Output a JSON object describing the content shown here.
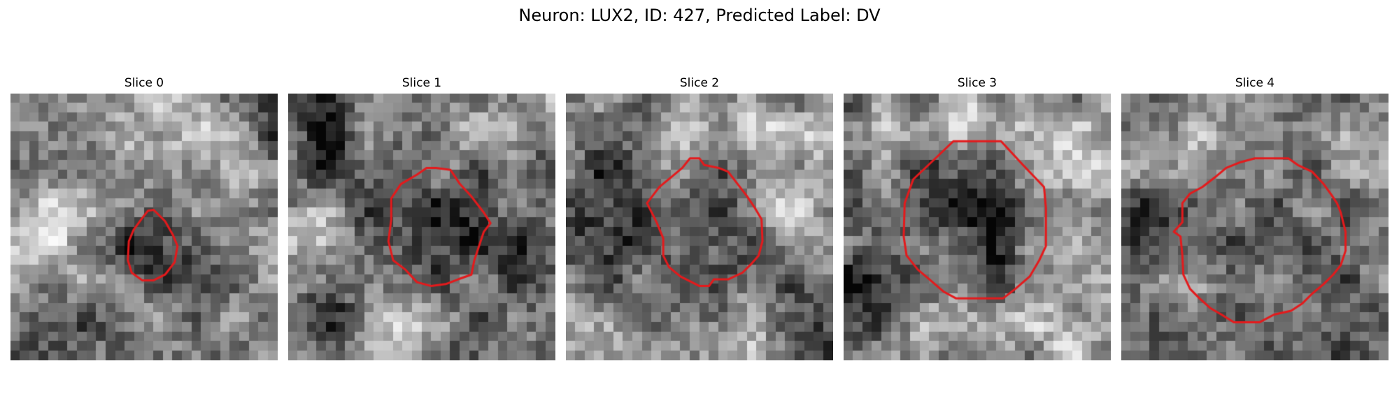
{
  "figure": {
    "title": "Neuron: LUX2, ID: 427, Predicted Label: DV",
    "contour_color": "#e41a1c",
    "image_colormap": "gray",
    "slices": [
      {
        "title": "Slice 0",
        "seed": 11,
        "contour": [
          [
            15,
            12.2
          ],
          [
            16.2,
            13.4
          ],
          [
            17,
            14.8
          ],
          [
            17.5,
            16
          ],
          [
            17.2,
            17.7
          ],
          [
            16.2,
            19
          ],
          [
            15,
            19.6
          ],
          [
            13.8,
            19.6
          ],
          [
            12.7,
            18.8
          ],
          [
            12.3,
            17.5
          ],
          [
            12.4,
            15.5
          ],
          [
            12.9,
            14.3
          ],
          [
            13.7,
            13.2
          ],
          [
            14.4,
            12.3
          ]
        ],
        "pattern": [
          {
            "x": 15,
            "y": 16.5,
            "rx": 3.8,
            "ry": 4.2,
            "v": -0.34
          },
          {
            "x": 20,
            "y": 4.5,
            "rx": 7,
            "ry": 6,
            "v": 0.2
          },
          {
            "x": 3,
            "y": 14,
            "rx": 5,
            "ry": 6,
            "v": 0.22
          },
          {
            "x": 6,
            "y": 27,
            "rx": 7,
            "ry": 4,
            "v": -0.25
          },
          {
            "x": 27.5,
            "y": 2,
            "rx": 2,
            "ry": 5,
            "v": -0.3
          },
          {
            "x": 24,
            "y": 25,
            "rx": 6,
            "ry": 5,
            "v": 0.12
          },
          {
            "x": 26,
            "y": 12,
            "rx": 5,
            "ry": 4,
            "v": 0.15
          }
        ]
      },
      {
        "title": "Slice 1",
        "seed": 23,
        "contour": [
          [
            15.5,
            7.8
          ],
          [
            17,
            8
          ],
          [
            18,
            9.5
          ],
          [
            19.2,
            10.8
          ],
          [
            20.5,
            12.5
          ],
          [
            21.2,
            13.6
          ],
          [
            20.5,
            14.5
          ],
          [
            20,
            16
          ],
          [
            19.5,
            17.5
          ],
          [
            19.2,
            19
          ],
          [
            17.8,
            19.5
          ],
          [
            16.5,
            20
          ],
          [
            15,
            20.2
          ],
          [
            13.5,
            19.8
          ],
          [
            12.3,
            18.5
          ],
          [
            11,
            17.5
          ],
          [
            10.5,
            15.5
          ],
          [
            10.8,
            13.2
          ],
          [
            10.8,
            11
          ],
          [
            11.8,
            9.5
          ],
          [
            13.5,
            8.5
          ],
          [
            14.5,
            7.8
          ]
        ],
        "pattern": [
          {
            "x": 15,
            "y": 14,
            "rx": 6.5,
            "ry": 6,
            "v": -0.38
          },
          {
            "x": 3,
            "y": 5,
            "rx": 4,
            "ry": 6,
            "v": -0.3
          },
          {
            "x": 2,
            "y": 13,
            "rx": 3,
            "ry": 3,
            "v": 0.3
          },
          {
            "x": 11,
            "y": 27,
            "rx": 5,
            "ry": 4,
            "v": 0.32
          },
          {
            "x": 4,
            "y": 22,
            "rx": 5,
            "ry": 5,
            "v": -0.28
          },
          {
            "x": 25,
            "y": 14,
            "rx": 4,
            "ry": 8,
            "v": -0.22
          },
          {
            "x": 16,
            "y": 3,
            "rx": 8,
            "ry": 3,
            "v": 0.15
          }
        ]
      },
      {
        "title": "Slice 2",
        "seed": 37,
        "contour": [
          [
            13,
            6.8
          ],
          [
            14,
            6.8
          ],
          [
            14.5,
            7.5
          ],
          [
            16,
            7.8
          ],
          [
            17,
            8.2
          ],
          [
            18,
            9.5
          ],
          [
            19,
            10.8
          ],
          [
            19.8,
            12
          ],
          [
            20.5,
            13.2
          ],
          [
            20.6,
            15.5
          ],
          [
            20.2,
            17
          ],
          [
            19.5,
            17.8
          ],
          [
            18.5,
            18.8
          ],
          [
            17,
            19.5
          ],
          [
            15.5,
            19.5
          ],
          [
            15,
            20.2
          ],
          [
            14,
            20.2
          ],
          [
            13.2,
            19.8
          ],
          [
            12,
            19.2
          ],
          [
            10.8,
            18.2
          ],
          [
            10.2,
            17
          ],
          [
            10.2,
            15.2
          ],
          [
            9.5,
            13.5
          ],
          [
            8.5,
            11.5
          ],
          [
            9.8,
            9.8
          ],
          [
            11,
            8.8
          ],
          [
            12.2,
            7.8
          ]
        ],
        "pattern": [
          {
            "x": 14.5,
            "y": 14.5,
            "rx": 5.5,
            "ry": 5,
            "v": -0.32
          },
          {
            "x": 4,
            "y": 12,
            "rx": 4,
            "ry": 10,
            "v": -0.3
          },
          {
            "x": 17,
            "y": 3,
            "rx": 6,
            "ry": 4,
            "v": 0.22
          },
          {
            "x": 24,
            "y": 12,
            "rx": 4,
            "ry": 7,
            "v": 0.22
          },
          {
            "x": 12,
            "y": 26,
            "rx": 8,
            "ry": 3,
            "v": 0.15
          },
          {
            "x": 25,
            "y": 25,
            "rx": 4,
            "ry": 4,
            "v": -0.25
          }
        ]
      },
      {
        "title": "Slice 3",
        "seed": 53,
        "contour": [
          [
            11.5,
            5
          ],
          [
            16.5,
            5
          ],
          [
            18.8,
            7.5
          ],
          [
            21,
            9.8
          ],
          [
            21.2,
            12
          ],
          [
            21.2,
            16
          ],
          [
            20.5,
            17.5
          ],
          [
            19.5,
            19.2
          ],
          [
            18,
            20.5
          ],
          [
            16.7,
            21.5
          ],
          [
            11.8,
            21.5
          ],
          [
            10.5,
            20.8
          ],
          [
            9,
            19.5
          ],
          [
            7.8,
            18.5
          ],
          [
            6.6,
            17
          ],
          [
            6.3,
            15
          ],
          [
            6.4,
            11.5
          ],
          [
            7.3,
            9
          ],
          [
            9.2,
            7.2
          ]
        ],
        "pattern": [
          {
            "x": 14,
            "y": 13.5,
            "rx": 8,
            "ry": 8.5,
            "v": -0.26
          },
          {
            "x": 14,
            "y": 2,
            "rx": 8,
            "ry": 3,
            "v": 0.22
          },
          {
            "x": 25,
            "y": 10,
            "rx": 4,
            "ry": 8,
            "v": 0.2
          },
          {
            "x": 1,
            "y": 22,
            "rx": 2.5,
            "ry": 7,
            "v": -0.3
          },
          {
            "x": 22,
            "y": 25,
            "rx": 5,
            "ry": 4,
            "v": 0.22
          },
          {
            "x": 11,
            "y": 27,
            "rx": 5,
            "ry": 3,
            "v": 0.12
          }
        ]
      },
      {
        "title": "Slice 4",
        "seed": 71,
        "contour": [
          [
            14,
            6.8
          ],
          [
            17.5,
            6.8
          ],
          [
            18.5,
            7.5
          ],
          [
            20,
            8.2
          ],
          [
            21.2,
            9.5
          ],
          [
            22,
            10.6
          ],
          [
            22.6,
            11.5
          ],
          [
            23,
            12.5
          ],
          [
            23.5,
            14.5
          ],
          [
            23.5,
            16.5
          ],
          [
            23,
            18
          ],
          [
            22.2,
            19
          ],
          [
            21.2,
            20
          ],
          [
            20,
            21
          ],
          [
            19,
            22
          ],
          [
            17.8,
            22.8
          ],
          [
            16,
            23.2
          ],
          [
            14.5,
            24
          ],
          [
            11.8,
            24
          ],
          [
            10.5,
            23.2
          ],
          [
            9.3,
            22.5
          ],
          [
            8.2,
            21.5
          ],
          [
            7.2,
            20.5
          ],
          [
            6.5,
            19
          ],
          [
            6.4,
            17
          ],
          [
            6.2,
            15
          ],
          [
            5.5,
            14.5
          ],
          [
            6.4,
            13.5
          ],
          [
            6.4,
            11.5
          ],
          [
            7.2,
            10.5
          ],
          [
            8.5,
            9.8
          ],
          [
            9.8,
            8.8
          ],
          [
            11,
            7.8
          ],
          [
            12.5,
            7.2
          ]
        ],
        "pattern": [
          {
            "x": 15,
            "y": 15.5,
            "rx": 8,
            "ry": 8.5,
            "v": -0.1
          },
          {
            "x": 3,
            "y": 14,
            "rx": 3,
            "ry": 8,
            "v": -0.12
          },
          {
            "x": 24,
            "y": 25,
            "rx": 5,
            "ry": 4,
            "v": -0.18
          },
          {
            "x": 5,
            "y": 7,
            "rx": 4,
            "ry": 4,
            "v": 0.12
          },
          {
            "x": 25,
            "y": 8,
            "rx": 4,
            "ry": 4,
            "v": 0.1
          }
        ]
      }
    ]
  }
}
